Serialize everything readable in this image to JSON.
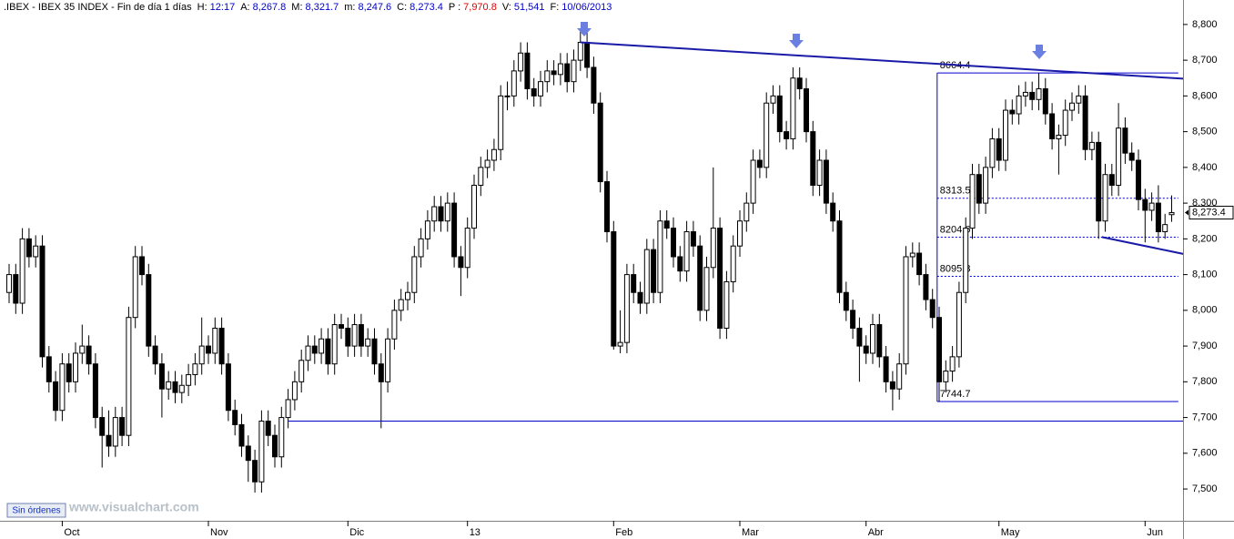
{
  "chart_data": {
    "type": "candlestick",
    "header": {
      "title": ".IBEX - IBEX 35 INDEX - Fin de día 1 días",
      "label_color": "#000000",
      "fields": [
        {
          "label": "H:",
          "value": "12:17",
          "color": "#0000cc"
        },
        {
          "label": "A:",
          "value": "8,267.8",
          "color": "#0000cc"
        },
        {
          "label": "M:",
          "value": "8,321.7",
          "color": "#0000cc"
        },
        {
          "label": "m:",
          "value": "8,247.6",
          "color": "#0000cc"
        },
        {
          "label": "C:",
          "value": "8,273.4",
          "color": "#0000cc"
        },
        {
          "label": "P :",
          "value": "7,970.8",
          "color": "#e00000"
        },
        {
          "label": "V:",
          "value": "51,541",
          "color": "#0000cc"
        },
        {
          "label": "F:",
          "value": "10/06/2013",
          "color": "#0000cc"
        }
      ]
    },
    "categories": [
      null,
      null,
      null,
      null,
      null,
      null,
      null,
      null,
      "Oct",
      null,
      null,
      null,
      null,
      null,
      null,
      null,
      null,
      null,
      null,
      null,
      null,
      null,
      null,
      null,
      null,
      null,
      null,
      null,
      null,
      null,
      "Nov",
      null,
      null,
      null,
      null,
      null,
      null,
      null,
      null,
      null,
      null,
      null,
      null,
      null,
      null,
      null,
      null,
      null,
      null,
      null,
      null,
      "Dic",
      null,
      null,
      null,
      null,
      null,
      null,
      null,
      null,
      null,
      null,
      null,
      null,
      null,
      null,
      null,
      null,
      null,
      "13",
      null,
      null,
      null,
      null,
      null,
      null,
      null,
      null,
      null,
      null,
      null,
      null,
      null,
      null,
      null,
      null,
      null,
      null,
      null,
      null,
      null,
      "Feb",
      null,
      null,
      null,
      null,
      null,
      null,
      null,
      null,
      null,
      null,
      null,
      null,
      null,
      null,
      null,
      null,
      null,
      null,
      "Mar",
      null,
      null,
      null,
      null,
      null,
      null,
      null,
      null,
      null,
      null,
      null,
      null,
      null,
      null,
      null,
      null,
      null,
      null,
      "Abr",
      null,
      null,
      null,
      null,
      null,
      null,
      null,
      null,
      null,
      null,
      null,
      null,
      null,
      null,
      null,
      null,
      null,
      null,
      null,
      "May",
      null,
      null,
      null,
      null,
      null,
      null,
      null,
      null,
      null,
      null,
      null,
      null,
      null,
      null,
      null,
      null,
      null,
      null,
      null,
      null,
      null,
      "Jun",
      null,
      null,
      null,
      null
    ],
    "open": [
      8050,
      8100,
      8020,
      8200,
      8150,
      8180,
      7870,
      7800,
      7720,
      7850,
      7800,
      7880,
      7900,
      7850,
      7700,
      7650,
      7620,
      7700,
      7650,
      7980,
      8150,
      8100,
      7900,
      7850,
      7780,
      7800,
      7770,
      7790,
      7820,
      7850,
      7900,
      7880,
      7950,
      7850,
      7720,
      7680,
      7620,
      7580,
      7520,
      7690,
      7650,
      7590,
      7700,
      7750,
      7800,
      7860,
      7900,
      7880,
      7920,
      7850,
      7960,
      7950,
      7900,
      7960,
      7900,
      7920,
      7850,
      7800,
      7920,
      8000,
      8030,
      8050,
      8150,
      8200,
      8250,
      8290,
      8250,
      8300,
      8150,
      8120,
      8230,
      8350,
      8400,
      8420,
      8450,
      8600,
      8600,
      8670,
      8720,
      8620,
      8600,
      8640,
      8670,
      8660,
      8690,
      8640,
      8700,
      8750,
      8680,
      8580,
      8360,
      8220,
      7900,
      7910,
      8100,
      8050,
      8020,
      8170,
      8050,
      8250,
      8230,
      8150,
      8110,
      8220,
      8180,
      8000,
      8120,
      8230,
      7950,
      8080,
      8180,
      8250,
      8300,
      8420,
      8400,
      8580,
      8600,
      8500,
      8480,
      8650,
      8620,
      8500,
      8350,
      8420,
      8300,
      8250,
      8050,
      8000,
      7950,
      7900,
      7880,
      7960,
      7870,
      7800,
      7780,
      7850,
      8150,
      8160,
      8100,
      8030,
      7980,
      7800,
      7830,
      7870,
      8050,
      8230,
      8380,
      8300,
      8400,
      8480,
      8420,
      8560,
      8550,
      8600,
      8610,
      8590,
      8620,
      8550,
      8480,
      8490,
      8560,
      8580,
      8600,
      8450,
      8470,
      8250,
      8380,
      8350,
      8510,
      8440,
      8420,
      8310,
      8280,
      8300,
      8220,
      8267.8
    ],
    "high": [
      8130,
      8130,
      8230,
      8230,
      8210,
      8210,
      7900,
      7830,
      7880,
      7880,
      7910,
      7960,
      7930,
      7880,
      7730,
      7720,
      7730,
      7730,
      8010,
      8180,
      8180,
      8130,
      7930,
      7880,
      7830,
      7830,
      7820,
      7850,
      7880,
      7980,
      7930,
      7980,
      7980,
      7880,
      7750,
      7710,
      7650,
      7610,
      7720,
      7720,
      7680,
      7730,
      7780,
      7830,
      7890,
      7930,
      7930,
      7950,
      7950,
      7990,
      7990,
      7980,
      7990,
      7990,
      7950,
      7950,
      7880,
      7950,
      8030,
      8060,
      8080,
      8180,
      8230,
      8280,
      8320,
      8320,
      8330,
      8330,
      8180,
      8260,
      8380,
      8430,
      8450,
      8480,
      8630,
      8640,
      8700,
      8750,
      8750,
      8650,
      8670,
      8700,
      8700,
      8720,
      8720,
      8730,
      8780,
      8780,
      8710,
      8610,
      8390,
      8250,
      8000,
      8130,
      8130,
      8080,
      8200,
      8200,
      8280,
      8280,
      8260,
      8180,
      8250,
      8250,
      8210,
      8150,
      8400,
      8260,
      8110,
      8210,
      8280,
      8330,
      8450,
      8450,
      8610,
      8630,
      8630,
      8530,
      8680,
      8680,
      8650,
      8530,
      8450,
      8450,
      8330,
      8280,
      8080,
      8030,
      7980,
      7930,
      7990,
      7990,
      7900,
      7830,
      7880,
      8180,
      8190,
      8190,
      8130,
      8060,
      8010,
      7860,
      7900,
      8080,
      8260,
      8410,
      8410,
      8430,
      8510,
      8510,
      8590,
      8590,
      8630,
      8640,
      8640,
      8664.4,
      8650,
      8580,
      8520,
      8590,
      8610,
      8630,
      8630,
      8500,
      8500,
      8410,
      8410,
      8580,
      8540,
      8470,
      8450,
      8340,
      8330,
      8350,
      8270,
      8321.7
    ],
    "low": [
      8020,
      7990,
      7990,
      8120,
      8120,
      7840,
      7770,
      7690,
      7690,
      7770,
      7770,
      7850,
      7820,
      7670,
      7560,
      7590,
      7590,
      7620,
      7620,
      7950,
      8070,
      7870,
      7820,
      7700,
      7750,
      7740,
      7740,
      7760,
      7790,
      7820,
      7850,
      7850,
      7820,
      7690,
      7650,
      7590,
      7520,
      7490,
      7490,
      7620,
      7560,
      7560,
      7670,
      7720,
      7770,
      7830,
      7850,
      7850,
      7820,
      7820,
      7920,
      7870,
      7870,
      7870,
      7870,
      7820,
      7670,
      7770,
      7890,
      7970,
      8000,
      8020,
      8120,
      8170,
      8220,
      8220,
      8220,
      8120,
      8040,
      8090,
      8200,
      8320,
      8370,
      8390,
      8420,
      8560,
      8570,
      8640,
      8590,
      8570,
      8570,
      8610,
      8630,
      8630,
      8610,
      8610,
      8670,
      8650,
      8550,
      8330,
      8190,
      7890,
      7880,
      7880,
      8020,
      7990,
      7990,
      8020,
      8020,
      8200,
      8120,
      8080,
      8080,
      8150,
      7970,
      7970,
      8090,
      7920,
      7920,
      8050,
      8150,
      8220,
      8270,
      8370,
      8370,
      8550,
      8470,
      8450,
      8450,
      8590,
      8470,
      8320,
      8320,
      8270,
      8220,
      8020,
      7970,
      7920,
      7800,
      7850,
      7850,
      7840,
      7770,
      7720,
      7750,
      7820,
      8120,
      8070,
      8000,
      7950,
      7744.7,
      7770,
      7800,
      7840,
      8020,
      8200,
      8270,
      8270,
      8370,
      8390,
      8390,
      8520,
      8520,
      8570,
      8560,
      8560,
      8520,
      8450,
      8380,
      8460,
      8530,
      8550,
      8420,
      8420,
      8200,
      8220,
      8320,
      8320,
      8410,
      8390,
      8280,
      8190,
      8250,
      8190,
      8200,
      8247.6
    ],
    "close": [
      8100,
      8020,
      8200,
      8150,
      8180,
      7870,
      7800,
      7720,
      7850,
      7800,
      7880,
      7900,
      7850,
      7700,
      7650,
      7620,
      7700,
      7650,
      7980,
      8150,
      8100,
      7900,
      7850,
      7780,
      7800,
      7770,
      7790,
      7820,
      7850,
      7900,
      7880,
      7950,
      7850,
      7720,
      7680,
      7620,
      7580,
      7520,
      7690,
      7650,
      7590,
      7700,
      7750,
      7800,
      7860,
      7900,
      7880,
      7920,
      7850,
      7960,
      7950,
      7900,
      7960,
      7900,
      7920,
      7850,
      7800,
      7920,
      8000,
      8030,
      8050,
      8150,
      8200,
      8250,
      8290,
      8250,
      8300,
      8150,
      8120,
      8230,
      8350,
      8400,
      8420,
      8450,
      8600,
      8600,
      8670,
      8720,
      8620,
      8600,
      8640,
      8670,
      8660,
      8690,
      8640,
      8700,
      8750,
      8680,
      8580,
      8360,
      8220,
      7900,
      7910,
      8100,
      8050,
      8020,
      8170,
      8050,
      8250,
      8230,
      8150,
      8110,
      8220,
      8180,
      8000,
      8120,
      8230,
      7950,
      8080,
      8180,
      8250,
      8300,
      8420,
      8400,
      8580,
      8600,
      8500,
      8480,
      8650,
      8620,
      8500,
      8350,
      8420,
      8300,
      8250,
      8050,
      8000,
      7950,
      7900,
      7880,
      7960,
      7870,
      7800,
      7780,
      7850,
      8150,
      8160,
      8100,
      8030,
      7980,
      7800,
      7830,
      7870,
      8050,
      8230,
      8380,
      8300,
      8400,
      8480,
      8420,
      8560,
      8550,
      8600,
      8610,
      8590,
      8620,
      8550,
      8480,
      8490,
      8560,
      8580,
      8600,
      8450,
      8470,
      8250,
      8380,
      8350,
      8510,
      8440,
      8420,
      8310,
      8280,
      8300,
      8220,
      8240,
      8273.4
    ],
    "up_color": "#ffffff",
    "down_color": "#000000",
    "ylim": [
      7411,
      8843
    ],
    "yticks": [
      {
        "value": 7500,
        "label": "7,500"
      },
      {
        "value": 7600,
        "label": "7,600"
      },
      {
        "value": 7700,
        "label": "7,700"
      },
      {
        "value": 7800,
        "label": "7,800"
      },
      {
        "value": 7900,
        "label": "7,900"
      },
      {
        "value": 8000,
        "label": "8,000"
      },
      {
        "value": 8100,
        "label": "8,100"
      },
      {
        "value": 8200,
        "label": "8,200"
      },
      {
        "value": 8300,
        "label": "8,300"
      },
      {
        "value": 8400,
        "label": "8,400"
      },
      {
        "value": 8500,
        "label": "8,500"
      },
      {
        "value": 8600,
        "label": "8,600"
      },
      {
        "value": 8700,
        "label": "8,700"
      },
      {
        "value": 8800,
        "label": "8,800"
      }
    ],
    "last_price": {
      "value": 8273.4,
      "label": "8,273.4"
    },
    "trendlines": [
      {
        "x": [
          86,
          177
        ],
        "y": [
          8750,
          8648
        ],
        "color": "#1a1aa8"
      },
      {
        "x": [
          164.5,
          177
        ],
        "y": [
          8205,
          8157
        ],
        "color": "#1a1aa8"
      },
      {
        "x": [
          42,
          177
        ],
        "y": [
          7690,
          7690
        ],
        "color": "#0000cc"
      }
    ],
    "fib": {
      "x": [
        139.7,
        176
      ],
      "levels": [
        8664.4,
        8313.5,
        8204.6,
        8095.3,
        7744.7
      ],
      "color": "#0000cc"
    },
    "grid": false
  },
  "ui": {
    "button": "Sin órdenes",
    "watermark": "www.visualchart.com"
  }
}
